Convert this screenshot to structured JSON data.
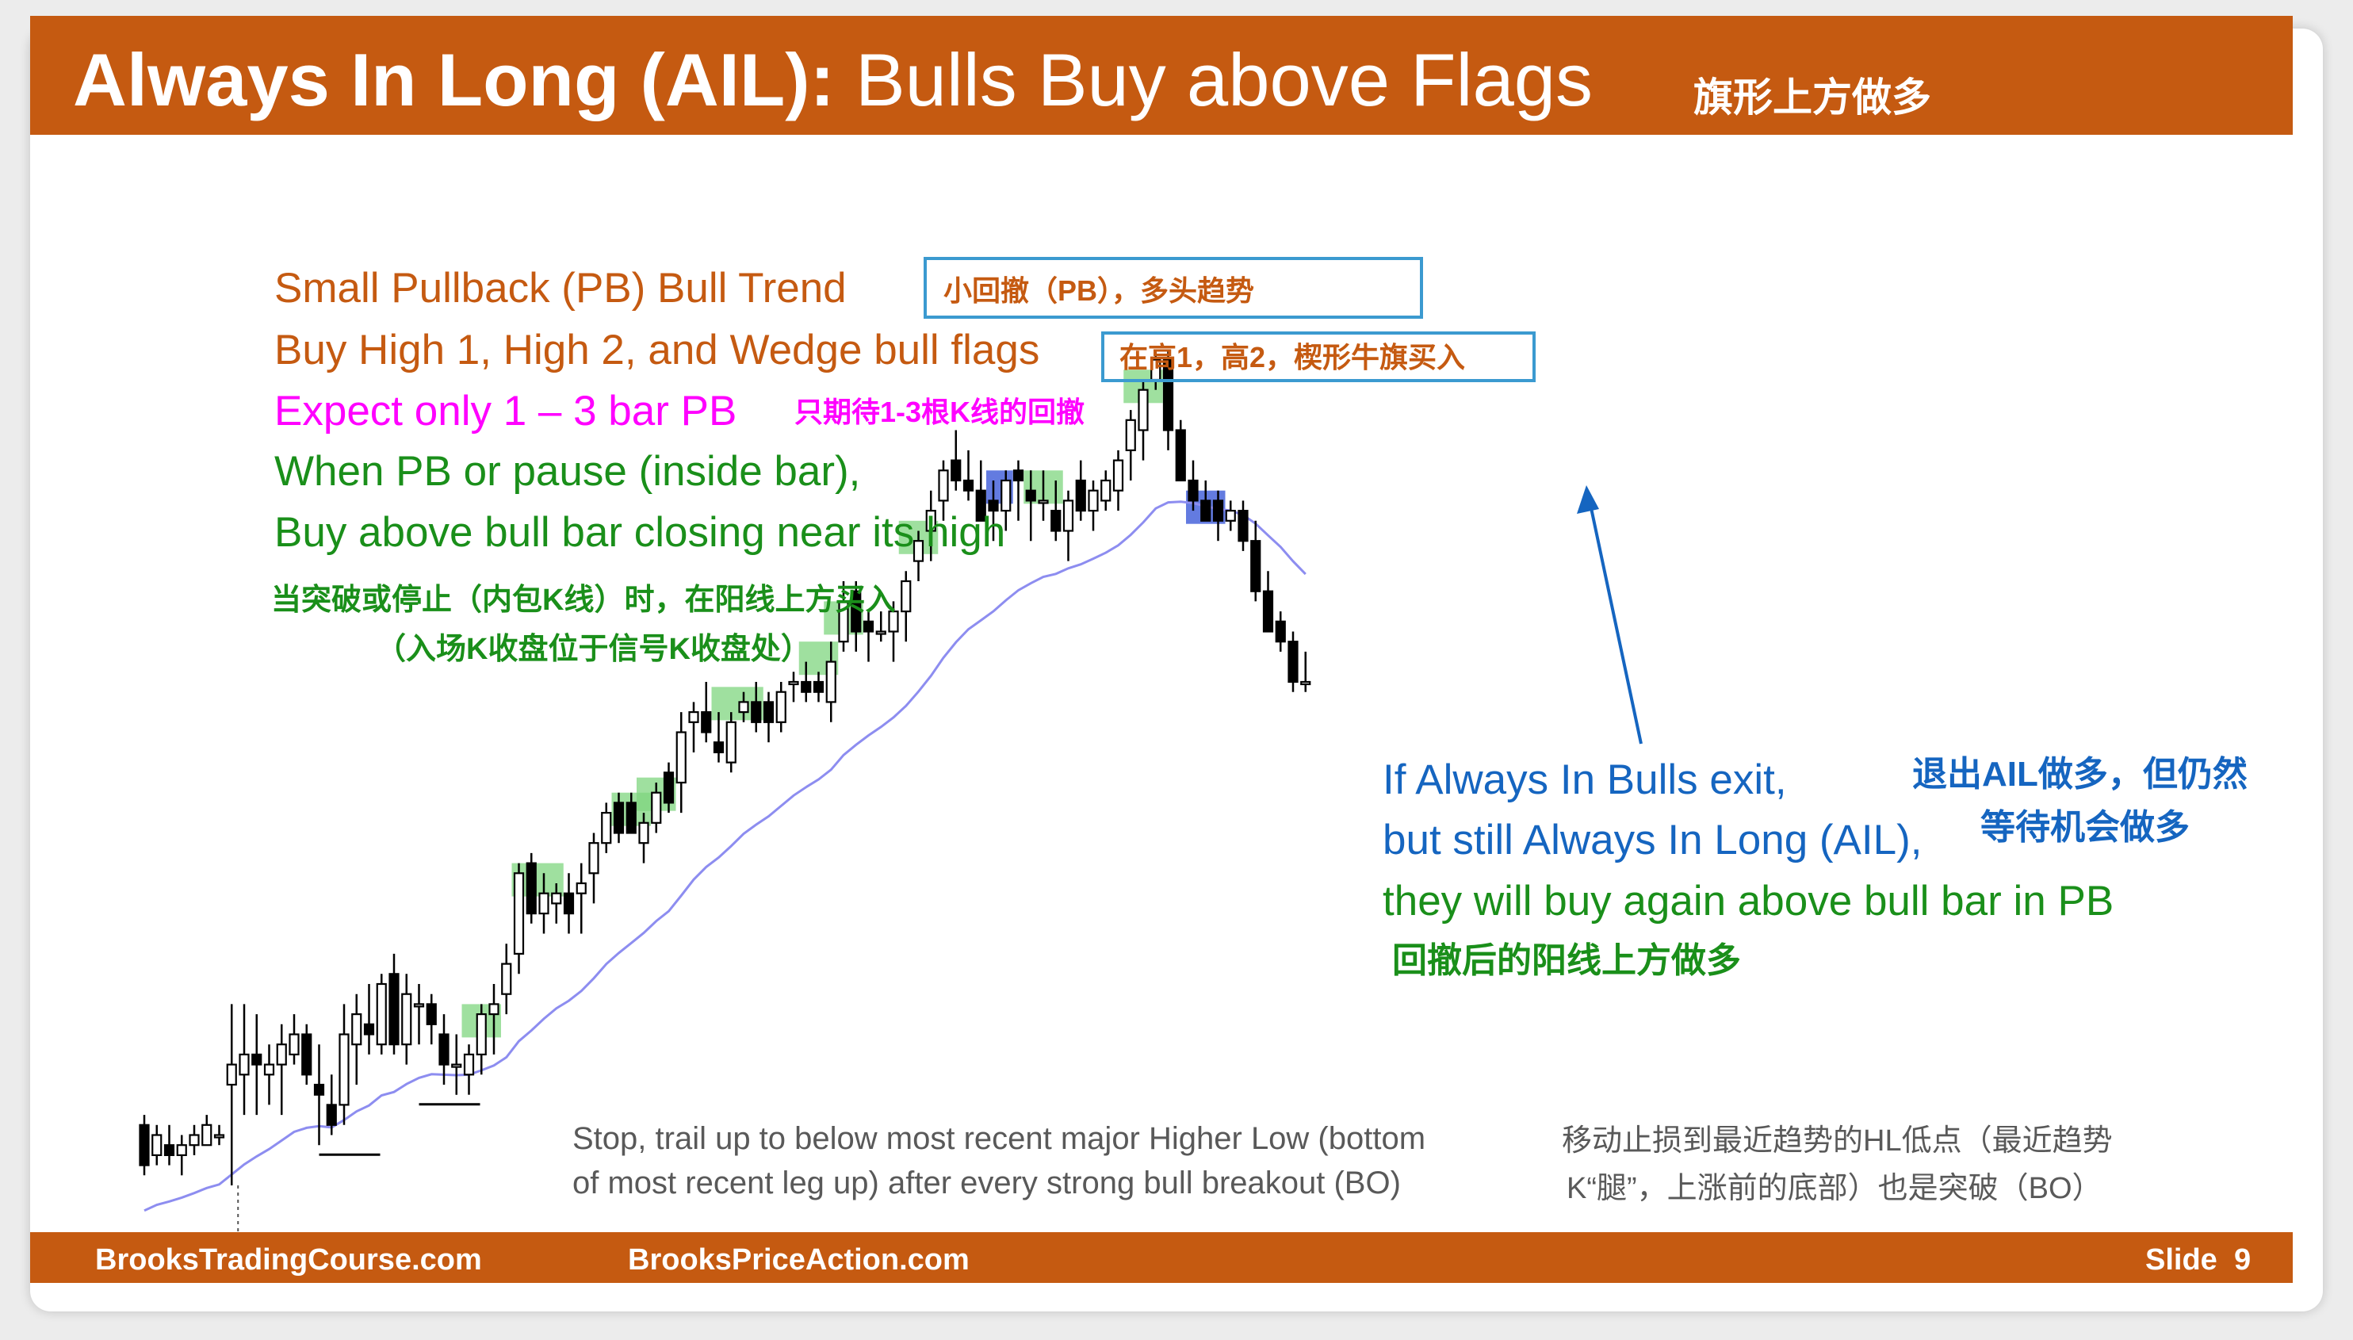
{
  "title": {
    "main_bold": "Always In Long (AIL):",
    "main_rest": " Bulls Buy above Flags",
    "chinese": "旗形上方做多"
  },
  "annotations": {
    "line1": "Small Pullback (PB) Bull Trend",
    "line1_cn": "小回撤（PB），多头趋势",
    "line2": "Buy High 1, High 2, and Wedge bull flags",
    "line2_cn": "在高1，高2，楔形牛旗买入",
    "line3": "Expect only 1 – 3 bar PB",
    "line3_cn": "只期待1-3根K线的回撤",
    "line4": "When PB or pause (inside bar),",
    "line5": "Buy above bull bar closing near its high",
    "line6_cn": "当突破或停止（内包K线）时，在阳线上方买入",
    "line7_cn": "（入场K收盘位于信号K收盘处）",
    "exit1": "If Always In Bulls exit,",
    "exit2": "but still Always In Long (AIL),",
    "exit3": "they will buy again above bull bar in PB",
    "exit_cn1": "退出AIL做多，但仍然",
    "exit_cn2": "等待机会做多",
    "exit_cn3": "回撤后的阳线上方做多",
    "stop1": "Stop, trail up to below most recent major Higher Low (bottom",
    "stop2": "of most recent leg up) after every strong bull breakout (BO)",
    "stop_cn1": "移动止损到最近趋势的HL低点（最近趋势",
    "stop_cn2": "K“腿”，上涨前的底部）也是突破（BO）"
  },
  "footer": {
    "left": "BrooksTradingCourse.com",
    "center": "BrooksPriceAction.com",
    "slide_label": "Slide",
    "slide_number": "9"
  },
  "colors": {
    "brand_orange": "#c55a11",
    "green_text": "#1a8f1a",
    "magenta_text": "#ff00ff",
    "blue_text": "#1565c0",
    "signal_green": "#7fd67f",
    "signal_blue": "#2f4fd6",
    "ema_line": "#8d8df0"
  },
  "chart_data": {
    "type": "candlestick",
    "description_units": "price (arbitrary, no axis printed)",
    "ohlc": [
      [
        96,
        97,
        91,
        92
      ],
      [
        93,
        96,
        92,
        95
      ],
      [
        94,
        96,
        92,
        93
      ],
      [
        93,
        95,
        91,
        94
      ],
      [
        94,
        96,
        93,
        95
      ],
      [
        94,
        97,
        94,
        96
      ],
      [
        95,
        96,
        94,
        95
      ],
      [
        100,
        108,
        90,
        102
      ],
      [
        101,
        108,
        97,
        103
      ],
      [
        103,
        107,
        97,
        102
      ],
      [
        101,
        104,
        98,
        102
      ],
      [
        102,
        106,
        97,
        104
      ],
      [
        103,
        107,
        102,
        105
      ],
      [
        105,
        106,
        100,
        101
      ],
      [
        100,
        104,
        94,
        99
      ],
      [
        98,
        101,
        95,
        96
      ],
      [
        98,
        108,
        96,
        105
      ],
      [
        104,
        109,
        100,
        107
      ],
      [
        106,
        110,
        103,
        105
      ],
      [
        104,
        111,
        103,
        110
      ],
      [
        111,
        113,
        103,
        104
      ],
      [
        104,
        111,
        102,
        109
      ],
      [
        108,
        110,
        104,
        108
      ],
      [
        108,
        109,
        104,
        106
      ],
      [
        105,
        107,
        100,
        102
      ],
      [
        102,
        105,
        99,
        102
      ],
      [
        101,
        104,
        99,
        103
      ],
      [
        103,
        108,
        101,
        107
      ],
      [
        107,
        110,
        103,
        108
      ],
      [
        109,
        114,
        107,
        112
      ],
      [
        113,
        122,
        111,
        121
      ],
      [
        122,
        123,
        116,
        117
      ],
      [
        117,
        121,
        115,
        119
      ],
      [
        118,
        120,
        116,
        119
      ],
      [
        119,
        121,
        115,
        117
      ],
      [
        119,
        122,
        115,
        120
      ],
      [
        121,
        125,
        118,
        124
      ],
      [
        124,
        128,
        123,
        127
      ],
      [
        128,
        129,
        124,
        125
      ],
      [
        128,
        129,
        125,
        125
      ],
      [
        124,
        127,
        122,
        126
      ],
      [
        126,
        130,
        125,
        129
      ],
      [
        131,
        132,
        127,
        128
      ],
      [
        130,
        137,
        127,
        135
      ],
      [
        136,
        138,
        133,
        137
      ],
      [
        137,
        140,
        134,
        135
      ],
      [
        134,
        137,
        132,
        133
      ],
      [
        132,
        137,
        131,
        136
      ],
      [
        137,
        139,
        136,
        138
      ],
      [
        138,
        140,
        135,
        136
      ],
      [
        138,
        139,
        134,
        136
      ],
      [
        136,
        140,
        135,
        139
      ],
      [
        140,
        141,
        138,
        140
      ],
      [
        140,
        142,
        138,
        139
      ],
      [
        140,
        141,
        138,
        139
      ],
      [
        138,
        144,
        136,
        142
      ],
      [
        144,
        150,
        143,
        148
      ],
      [
        149,
        150,
        143,
        145
      ],
      [
        146,
        147,
        142,
        145
      ],
      [
        145,
        147,
        144,
        145
      ],
      [
        145,
        148,
        142,
        147
      ],
      [
        147,
        151,
        144,
        150
      ],
      [
        152,
        155,
        150,
        154
      ],
      [
        155,
        159,
        152,
        157
      ],
      [
        158,
        162,
        156,
        161
      ],
      [
        162,
        165,
        159,
        160
      ],
      [
        160,
        163,
        158,
        159
      ],
      [
        159,
        162,
        156,
        156
      ],
      [
        158,
        160,
        154,
        157
      ],
      [
        157,
        161,
        155,
        160
      ],
      [
        161,
        162,
        156,
        160
      ],
      [
        159,
        161,
        154,
        158
      ],
      [
        158,
        161,
        156,
        158
      ],
      [
        157,
        160,
        154,
        155
      ],
      [
        155,
        159,
        152,
        158
      ],
      [
        160,
        162,
        156,
        157
      ],
      [
        157,
        160,
        155,
        159
      ],
      [
        158,
        161,
        157,
        160
      ],
      [
        159,
        163,
        157,
        162
      ],
      [
        163,
        167,
        160,
        166
      ],
      [
        165,
        170,
        162,
        169
      ],
      [
        170,
        173,
        169,
        172
      ],
      [
        172,
        173,
        163,
        165
      ],
      [
        165,
        166,
        160,
        160
      ],
      [
        160,
        162,
        157,
        158
      ],
      [
        158,
        160,
        156,
        156
      ],
      [
        158,
        159,
        154,
        156
      ],
      [
        156,
        158,
        155,
        157
      ],
      [
        157,
        158,
        153,
        154
      ],
      [
        154,
        156,
        148,
        149
      ],
      [
        149,
        151,
        145,
        145
      ],
      [
        146,
        147,
        143,
        144
      ],
      [
        144,
        145,
        139,
        140
      ],
      [
        140,
        143,
        139,
        140
      ]
    ],
    "ema20": "moving average line under the bars, rising then flattening"
  }
}
